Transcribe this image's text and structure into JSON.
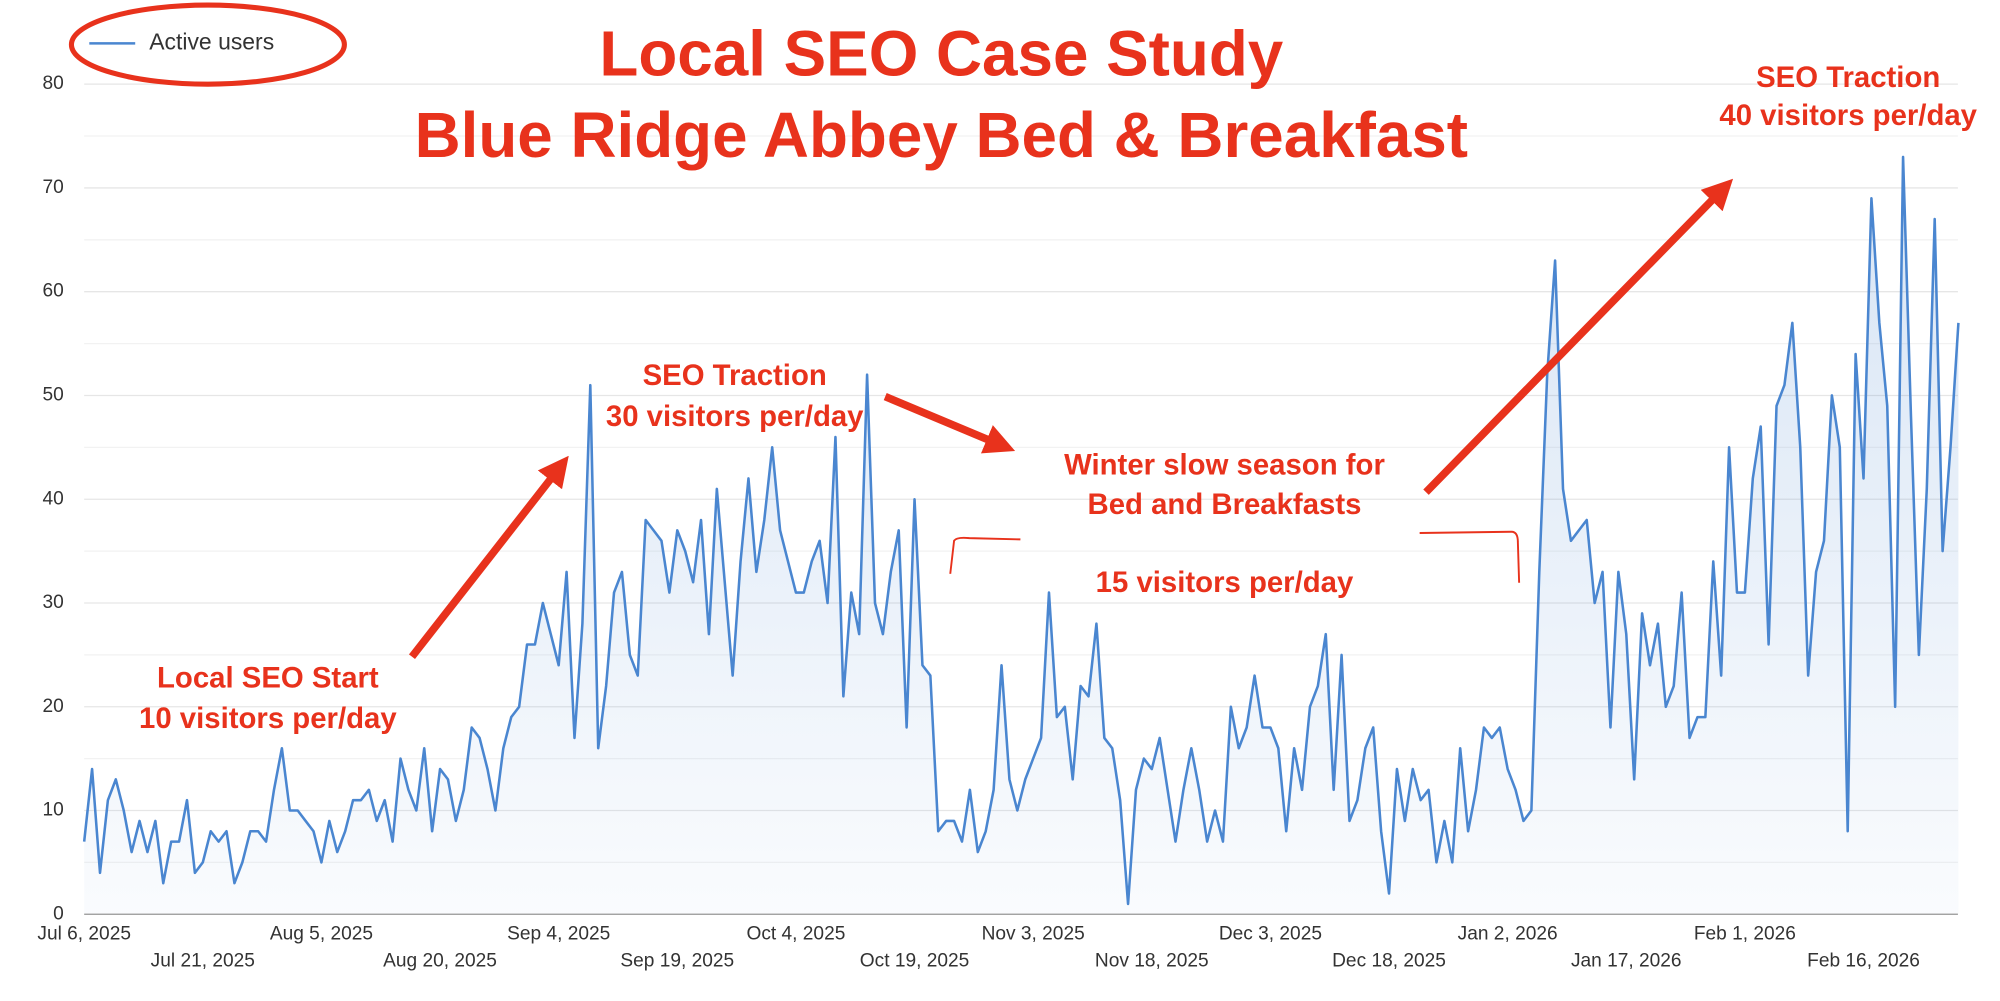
{
  "chart_data": {
    "type": "line",
    "title": "Local SEO Case Study",
    "subtitle": "Blue Ridge Abbey Bed & Breakfast",
    "annotations": [
      "Local SEO Start",
      "10 visitors per/day",
      "SEO Traction",
      "30 visitors per/day",
      "Winter slow season for",
      "Bed and Breakfasts",
      "15 visitors per/day",
      "SEO Traction",
      "40 visitors per/day"
    ],
    "categories": [
      "Jul 6, 2025",
      null,
      null,
      null,
      null,
      null,
      null,
      null,
      null,
      null,
      null,
      null,
      null,
      null,
      null,
      "Jul 21, 2025",
      null,
      null,
      null,
      null,
      null,
      null,
      null,
      null,
      null,
      null,
      null,
      null,
      null,
      null,
      "Aug 5, 2025",
      null,
      null,
      null,
      null,
      null,
      null,
      null,
      null,
      null,
      null,
      null,
      null,
      null,
      null,
      "Aug 20, 2025",
      null,
      null,
      null,
      null,
      null,
      null,
      null,
      null,
      null,
      null,
      null,
      null,
      null,
      null,
      "Sep 4, 2025",
      null,
      null,
      null,
      null,
      null,
      null,
      null,
      null,
      null,
      null,
      null,
      null,
      null,
      null,
      "Sep 19, 2025",
      null,
      null,
      null,
      null,
      null,
      null,
      null,
      null,
      null,
      null,
      null,
      null,
      null,
      null,
      "Oct 4, 2025",
      null,
      null,
      null,
      null,
      null,
      null,
      null,
      null,
      null,
      null,
      null,
      null,
      null,
      null,
      "Oct 19, 2025",
      null,
      null,
      null,
      null,
      null,
      null,
      null,
      null,
      null,
      null,
      null,
      null,
      null,
      null,
      "Nov 3, 2025",
      null,
      null,
      null,
      null,
      null,
      null,
      null,
      null,
      null,
      null,
      null,
      null,
      null,
      null,
      "Nov 18, 2025",
      null,
      null,
      null,
      null,
      null,
      null,
      null,
      null,
      null,
      null,
      null,
      null,
      null,
      null,
      "Dec 3, 2025",
      null,
      null,
      null,
      null,
      null,
      null,
      null,
      null,
      null,
      null,
      null,
      null,
      null,
      null,
      "Dec 18, 2025",
      null,
      null,
      null,
      null,
      null,
      null,
      null,
      null,
      null,
      null,
      null,
      null,
      null,
      null,
      "Jan 2, 2026",
      null,
      null,
      null,
      null,
      null,
      null,
      null,
      null,
      null,
      null,
      null,
      null,
      null,
      null,
      "Jan 17, 2026",
      null,
      null,
      null,
      null,
      null,
      null,
      null,
      null,
      null,
      null,
      null,
      null,
      null,
      null,
      "Feb 1, 2026",
      null,
      null,
      null,
      null,
      null,
      null,
      null,
      null,
      null,
      null,
      null,
      null,
      null,
      null,
      "Feb 16, 2026",
      null,
      null,
      null,
      null,
      null,
      null,
      null,
      null,
      null,
      null,
      null,
      null
    ],
    "series": [
      {
        "name": "Active users",
        "color": "#4a86d0",
        "values": [
          7,
          14,
          4,
          11,
          13,
          10,
          6,
          9,
          6,
          9,
          3,
          7,
          7,
          11,
          4,
          5,
          8,
          7,
          8,
          3,
          5,
          8,
          8,
          7,
          12,
          16,
          10,
          10,
          9,
          8,
          5,
          9,
          6,
          8,
          11,
          11,
          12,
          9,
          11,
          7,
          15,
          12,
          10,
          16,
          8,
          14,
          13,
          9,
          12,
          18,
          17,
          14,
          10,
          16,
          19,
          20,
          26,
          26,
          30,
          27,
          24,
          33,
          17,
          28,
          51,
          16,
          22,
          31,
          33,
          25,
          23,
          38,
          37,
          36,
          31,
          37,
          35,
          32,
          38,
          27,
          41,
          32,
          23,
          34,
          42,
          33,
          38,
          45,
          37,
          34,
          31,
          31,
          34,
          36,
          30,
          46,
          21,
          31,
          27,
          52,
          30,
          27,
          33,
          37,
          18,
          40,
          24,
          23,
          8,
          9,
          9,
          7,
          12,
          6,
          8,
          12,
          24,
          13,
          10,
          13,
          15,
          17,
          31,
          19,
          20,
          13,
          22,
          21,
          28,
          17,
          16,
          11,
          1,
          12,
          15,
          14,
          17,
          12,
          7,
          12,
          16,
          12,
          7,
          10,
          7,
          20,
          16,
          18,
          23,
          18,
          18,
          16,
          8,
          16,
          12,
          20,
          22,
          27,
          12,
          25,
          9,
          11,
          16,
          18,
          8,
          2,
          14,
          9,
          14,
          11,
          12,
          5,
          9,
          5,
          16,
          8,
          12,
          18,
          17,
          18,
          14,
          12,
          9,
          10,
          33,
          52,
          63,
          41,
          36,
          37,
          38,
          30,
          33,
          18,
          33,
          27,
          13,
          29,
          24,
          28,
          20,
          22,
          31,
          17,
          19,
          19,
          34,
          23,
          45,
          31,
          31,
          42,
          47,
          26,
          49,
          51,
          57,
          45,
          23,
          33,
          36,
          50,
          45,
          8,
          54,
          42,
          69,
          57,
          49,
          20,
          73,
          48,
          25,
          41,
          67,
          35,
          45,
          57
        ]
      }
    ],
    "ylim": [
      0,
      80
    ],
    "yticks": [
      0,
      10,
      20,
      30,
      40,
      50,
      60,
      70,
      80
    ],
    "grid": true
  }
}
